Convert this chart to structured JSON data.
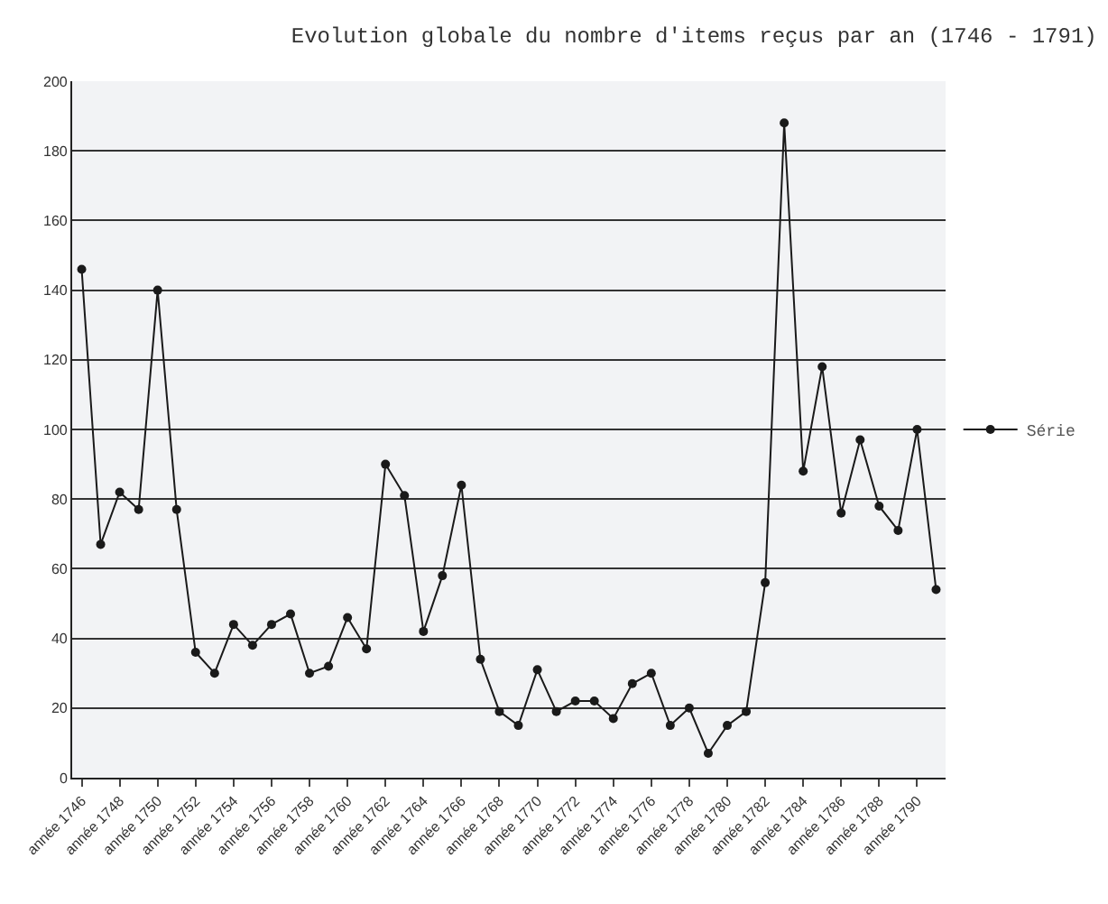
{
  "chart_data": {
    "type": "line",
    "title": "Evolution globale du nombre d'items reçus par an (1746 - 1791)",
    "categories": [
      "année 1746",
      null,
      "année 1748",
      null,
      "année 1750",
      null,
      "année 1752",
      null,
      "année 1754",
      null,
      "année 1756",
      null,
      "année 1758",
      null,
      "année 1760",
      null,
      "année 1762",
      null,
      "année 1764",
      null,
      "année 1766",
      null,
      "année 1768",
      null,
      "année 1770",
      null,
      "année 1772",
      null,
      "année 1774",
      null,
      "année 1776",
      null,
      "année 1778",
      null,
      "année 1780",
      null,
      "année 1782",
      null,
      "année 1784",
      null,
      "année 1786",
      null,
      "année 1788",
      null,
      "année 1790",
      null
    ],
    "series": [
      {
        "name": "Série",
        "color": "#1a1a1a",
        "values": [
          146,
          67,
          82,
          77,
          140,
          77,
          36,
          30,
          44,
          38,
          44,
          47,
          30,
          32,
          46,
          37,
          90,
          81,
          42,
          58,
          84,
          34,
          19,
          15,
          31,
          19,
          22,
          22,
          17,
          27,
          30,
          15,
          20,
          7,
          15,
          19,
          56,
          188,
          88,
          118,
          76,
          97,
          78,
          71,
          100,
          54
        ]
      }
    ],
    "ylim": [
      0,
      200
    ],
    "yticks": [
      0,
      20,
      40,
      60,
      80,
      100,
      120,
      140,
      160,
      180,
      200
    ],
    "grid": "y",
    "legend": "right",
    "marker": "circle",
    "line_style": "solid"
  }
}
